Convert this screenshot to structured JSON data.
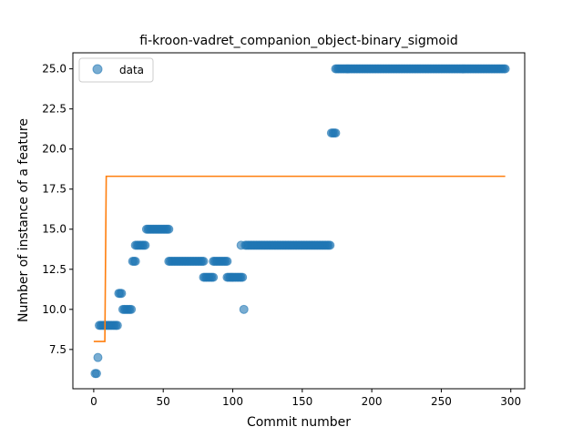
{
  "chart_data": {
    "type": "scatter",
    "title": "fi-kroon-vadret_companion_object-binary_sigmoid",
    "xlabel": "Commit number",
    "ylabel": "Number of instance of a feature",
    "xlim": [
      -15,
      310
    ],
    "ylim": [
      5.05,
      26.0
    ],
    "xticks": [
      0,
      50,
      100,
      150,
      200,
      250,
      300
    ],
    "yticks": [
      7.5,
      10.0,
      12.5,
      15.0,
      17.5,
      20.0,
      22.5,
      25.0
    ],
    "legend": {
      "entries": [
        "data"
      ],
      "placement": "top-left"
    },
    "colors": {
      "points": "#1f77b4",
      "fit": "#ff7f0e"
    },
    "series": [
      {
        "name": "data",
        "kind": "scatter",
        "segments": [
          {
            "x_from": 1,
            "x_to": 2,
            "y": 6
          },
          {
            "x_from": 3,
            "x_to": 3,
            "y": 7
          },
          {
            "x_from": 4,
            "x_to": 17,
            "y": 9
          },
          {
            "x_from": 18,
            "x_to": 20,
            "y": 11
          },
          {
            "x_from": 21,
            "x_to": 27,
            "y": 10
          },
          {
            "x_from": 28,
            "x_to": 30,
            "y": 13
          },
          {
            "x_from": 30,
            "x_to": 37,
            "y": 14
          },
          {
            "x_from": 38,
            "x_to": 54,
            "y": 15
          },
          {
            "x_from": 54,
            "x_to": 79,
            "y": 13
          },
          {
            "x_from": 79,
            "x_to": 86,
            "y": 12
          },
          {
            "x_from": 86,
            "x_to": 96,
            "y": 13
          },
          {
            "x_from": 96,
            "x_to": 107,
            "y": 12
          },
          {
            "x_from": 106,
            "x_to": 106,
            "y": 14
          },
          {
            "x_from": 108,
            "x_to": 108,
            "y": 10
          },
          {
            "x_from": 109,
            "x_to": 170,
            "y": 14
          },
          {
            "x_from": 171,
            "x_to": 174,
            "y": 21
          },
          {
            "x_from": 174,
            "x_to": 296,
            "y": 25
          }
        ]
      },
      {
        "name": "",
        "kind": "line",
        "points": [
          [
            0,
            8.0
          ],
          [
            8,
            8.0
          ],
          [
            9,
            18.3
          ],
          [
            296,
            18.3
          ]
        ]
      }
    ]
  }
}
